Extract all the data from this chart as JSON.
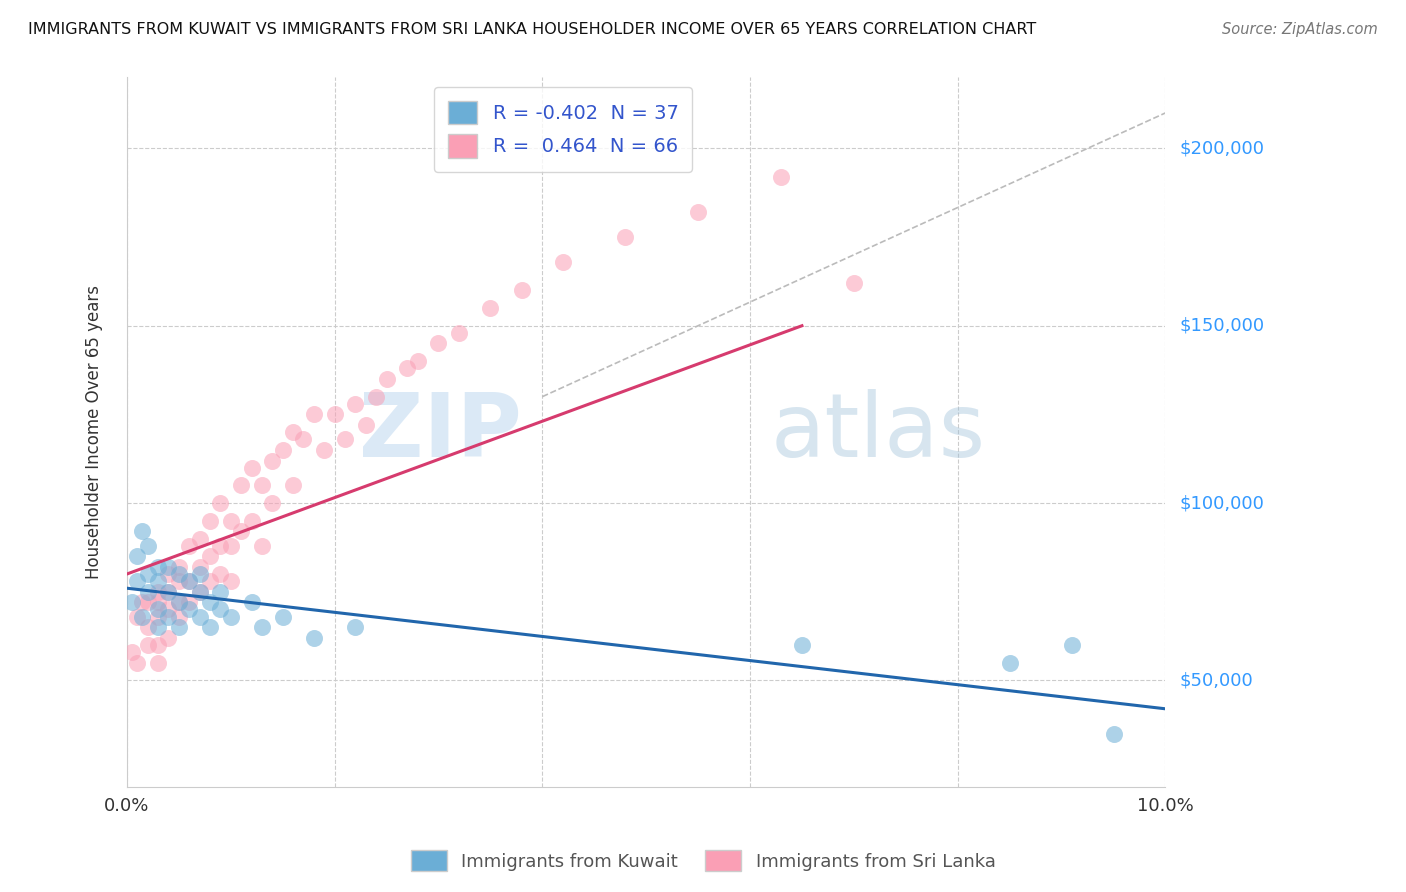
{
  "title": "IMMIGRANTS FROM KUWAIT VS IMMIGRANTS FROM SRI LANKA HOUSEHOLDER INCOME OVER 65 YEARS CORRELATION CHART",
  "source": "Source: ZipAtlas.com",
  "ylabel": "Householder Income Over 65 years",
  "xlim": [
    0.0,
    0.1
  ],
  "ylim": [
    20000,
    220000
  ],
  "yticks": [
    50000,
    100000,
    150000,
    200000
  ],
  "ytick_labels": [
    "$50,000",
    "$100,000",
    "$150,000",
    "$200,000"
  ],
  "xticks": [
    0.0,
    0.02,
    0.04,
    0.06,
    0.08,
    0.1
  ],
  "xtick_labels": [
    "0.0%",
    "",
    "",
    "",
    "",
    "10.0%"
  ],
  "kuwait_R": -0.402,
  "kuwait_N": 37,
  "srilanka_R": 0.464,
  "srilanka_N": 66,
  "kuwait_color": "#6baed6",
  "srilanka_color": "#fa9fb5",
  "kuwait_line_color": "#2166ac",
  "srilanka_line_color": "#d63b6e",
  "watermark_zip": "ZIP",
  "watermark_atlas": "atlas",
  "background_color": "#ffffff",
  "kuwait_scatter_x": [
    0.0005,
    0.001,
    0.001,
    0.0015,
    0.0015,
    0.002,
    0.002,
    0.002,
    0.003,
    0.003,
    0.003,
    0.003,
    0.004,
    0.004,
    0.004,
    0.005,
    0.005,
    0.005,
    0.006,
    0.006,
    0.007,
    0.007,
    0.007,
    0.008,
    0.008,
    0.009,
    0.009,
    0.01,
    0.012,
    0.013,
    0.015,
    0.018,
    0.022,
    0.065,
    0.085,
    0.091,
    0.095
  ],
  "kuwait_scatter_y": [
    72000,
    85000,
    78000,
    92000,
    68000,
    80000,
    75000,
    88000,
    82000,
    70000,
    78000,
    65000,
    75000,
    82000,
    68000,
    72000,
    80000,
    65000,
    78000,
    70000,
    75000,
    68000,
    80000,
    72000,
    65000,
    70000,
    75000,
    68000,
    72000,
    65000,
    68000,
    62000,
    65000,
    60000,
    55000,
    60000,
    35000
  ],
  "srilanka_scatter_x": [
    0.0005,
    0.001,
    0.001,
    0.0015,
    0.002,
    0.002,
    0.002,
    0.003,
    0.003,
    0.003,
    0.003,
    0.003,
    0.004,
    0.004,
    0.004,
    0.004,
    0.005,
    0.005,
    0.005,
    0.005,
    0.006,
    0.006,
    0.006,
    0.007,
    0.007,
    0.007,
    0.008,
    0.008,
    0.008,
    0.009,
    0.009,
    0.009,
    0.01,
    0.01,
    0.01,
    0.011,
    0.011,
    0.012,
    0.012,
    0.013,
    0.013,
    0.014,
    0.014,
    0.015,
    0.016,
    0.016,
    0.017,
    0.018,
    0.019,
    0.02,
    0.021,
    0.022,
    0.023,
    0.024,
    0.025,
    0.027,
    0.028,
    0.03,
    0.032,
    0.035,
    0.038,
    0.042,
    0.048,
    0.055,
    0.063,
    0.07
  ],
  "srilanka_scatter_y": [
    58000,
    68000,
    55000,
    72000,
    65000,
    72000,
    60000,
    75000,
    68000,
    72000,
    60000,
    55000,
    80000,
    70000,
    75000,
    62000,
    82000,
    72000,
    68000,
    78000,
    88000,
    78000,
    72000,
    90000,
    82000,
    75000,
    95000,
    85000,
    78000,
    100000,
    88000,
    80000,
    95000,
    88000,
    78000,
    105000,
    92000,
    110000,
    95000,
    105000,
    88000,
    112000,
    100000,
    115000,
    120000,
    105000,
    118000,
    125000,
    115000,
    125000,
    118000,
    128000,
    122000,
    130000,
    135000,
    138000,
    140000,
    145000,
    148000,
    155000,
    160000,
    168000,
    175000,
    182000,
    192000,
    162000
  ],
  "srilanka_line_x": [
    0.0,
    0.065
  ],
  "srilanka_line_y": [
    80000,
    150000
  ],
  "kuwait_line_x": [
    0.0,
    0.1
  ],
  "kuwait_line_y": [
    76000,
    42000
  ],
  "diag_line_x": [
    0.04,
    0.1
  ],
  "diag_line_y": [
    130000,
    210000
  ]
}
